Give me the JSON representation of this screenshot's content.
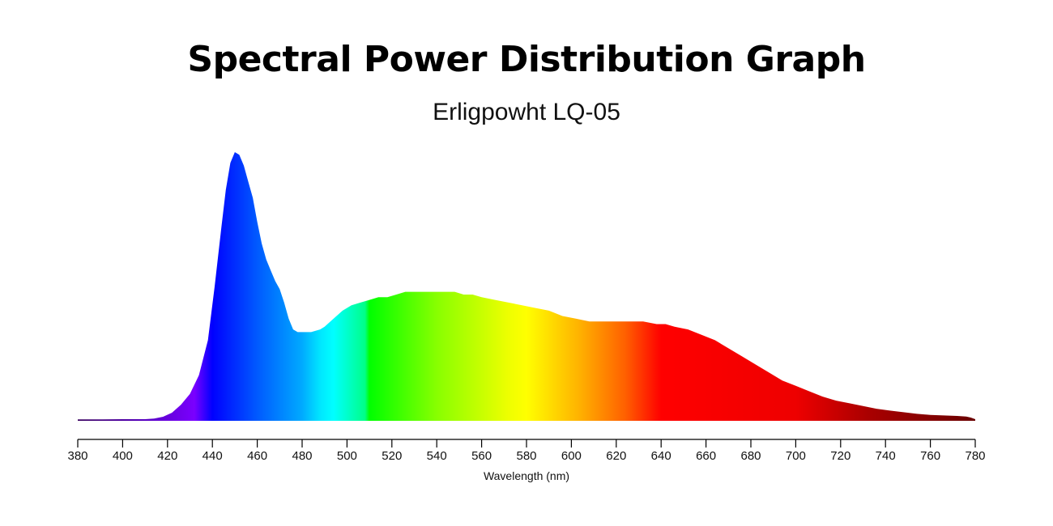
{
  "chart_data": {
    "type": "area",
    "title": "Spectral Power Distribution Graph",
    "subtitle": "Erligpowht LQ-05",
    "xlabel": "Wavelength (nm)",
    "ylabel": "",
    "xlim": [
      380,
      780
    ],
    "ylim": [
      0,
      1
    ],
    "x_ticks": [
      380,
      400,
      420,
      440,
      460,
      480,
      500,
      520,
      540,
      560,
      580,
      600,
      620,
      640,
      660,
      680,
      700,
      720,
      740,
      760,
      780
    ],
    "grid": false,
    "fill": "visible-spectrum gradient",
    "x": [
      380,
      390,
      400,
      405,
      410,
      414,
      418,
      422,
      426,
      430,
      434,
      438,
      441,
      444,
      446,
      448,
      450,
      452,
      454,
      456,
      458,
      460,
      462,
      464,
      466,
      468,
      470,
      472,
      474,
      476,
      478,
      480,
      484,
      488,
      490,
      494,
      498,
      502,
      506,
      510,
      514,
      518,
      522,
      526,
      530,
      536,
      542,
      548,
      552,
      556,
      560,
      566,
      572,
      578,
      584,
      590,
      596,
      602,
      608,
      614,
      620,
      626,
      632,
      638,
      642,
      646,
      652,
      658,
      664,
      670,
      676,
      682,
      688,
      694,
      700,
      706,
      712,
      718,
      724,
      730,
      736,
      742,
      748,
      754,
      760,
      766,
      772,
      776,
      778,
      780
    ],
    "values": [
      0.005,
      0.005,
      0.006,
      0.006,
      0.006,
      0.008,
      0.015,
      0.03,
      0.06,
      0.1,
      0.17,
      0.3,
      0.5,
      0.72,
      0.86,
      0.96,
      1.0,
      0.99,
      0.95,
      0.89,
      0.83,
      0.74,
      0.66,
      0.6,
      0.56,
      0.52,
      0.49,
      0.44,
      0.38,
      0.34,
      0.33,
      0.33,
      0.33,
      0.34,
      0.35,
      0.38,
      0.41,
      0.43,
      0.44,
      0.45,
      0.46,
      0.46,
      0.47,
      0.48,
      0.48,
      0.48,
      0.48,
      0.48,
      0.47,
      0.47,
      0.46,
      0.45,
      0.44,
      0.43,
      0.42,
      0.41,
      0.39,
      0.38,
      0.37,
      0.37,
      0.37,
      0.37,
      0.37,
      0.36,
      0.36,
      0.35,
      0.34,
      0.32,
      0.3,
      0.27,
      0.24,
      0.21,
      0.18,
      0.15,
      0.13,
      0.11,
      0.09,
      0.075,
      0.065,
      0.055,
      0.045,
      0.038,
      0.032,
      0.026,
      0.022,
      0.02,
      0.018,
      0.016,
      0.012,
      0.006
    ]
  }
}
